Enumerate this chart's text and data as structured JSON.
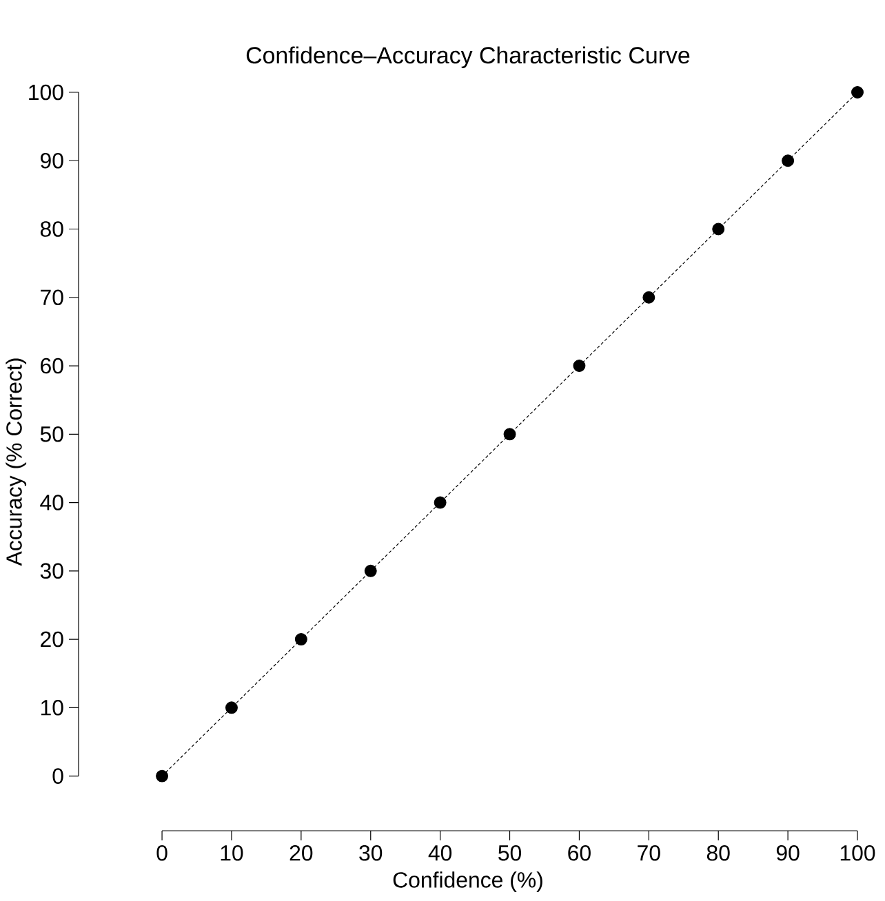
{
  "chart_data": {
    "type": "line",
    "title": "Confidence–Accuracy Characteristic Curve",
    "xlabel": "Confidence (%)",
    "ylabel": "Accuracy (% Correct)",
    "x": [
      0,
      10,
      20,
      30,
      40,
      50,
      60,
      70,
      80,
      90,
      100
    ],
    "series": [
      {
        "color": "#000000",
        "values": [
          0,
          10,
          20,
          30,
          40,
          50,
          60,
          70,
          80,
          90,
          100
        ]
      }
    ],
    "marker": "circle",
    "line_style": "dashed",
    "xlim": [
      -12,
      100
    ],
    "ylim": [
      -8,
      100
    ],
    "xticks": [
      0,
      10,
      20,
      30,
      40,
      50,
      60,
      70,
      80,
      90,
      100
    ],
    "yticks": [
      0,
      10,
      20,
      30,
      40,
      50,
      60,
      70,
      80,
      90,
      100
    ]
  }
}
